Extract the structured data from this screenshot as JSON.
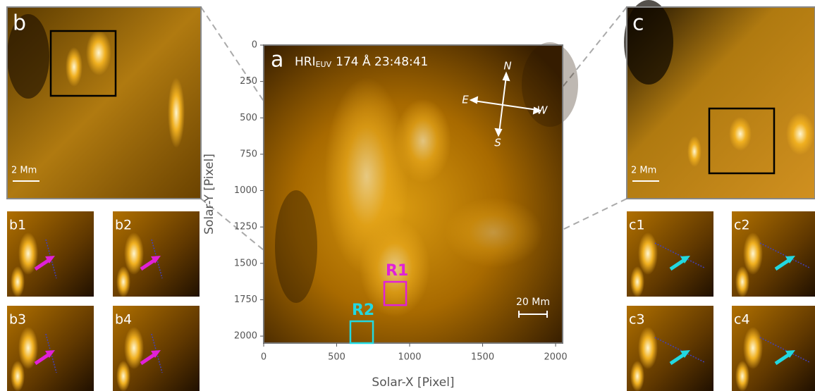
{
  "chart_data": {
    "type": "image",
    "panel_label": "a",
    "instrument": "HRI",
    "instrument_sub": "EUV",
    "caption": "174 Å 23:48:41",
    "x_label": "Solar-X [Pixel]",
    "y_label": "Solar-Y [Pixel]",
    "xlim": [
      0,
      2048
    ],
    "ylim": [
      2048,
      0
    ],
    "xticks": [
      0,
      500,
      1000,
      1500,
      2000
    ],
    "yticks": [
      0,
      250,
      500,
      750,
      1000,
      1250,
      1500,
      1750,
      2000
    ],
    "compass": [
      "N",
      "E",
      "W",
      "S"
    ],
    "scale_label": "20 Mm",
    "regions": [
      {
        "name": "R1",
        "color": "#e020d8",
        "x": [
          826,
          976
        ],
        "y": [
          1627,
          1787
        ]
      },
      {
        "name": "R2",
        "color": "#22d8e0",
        "x": [
          594,
          749
        ],
        "y": [
          1898,
          2048
        ]
      }
    ],
    "insets": [
      {
        "label": "b",
        "scale_label": "2 Mm",
        "arrow_color": "#e020d8"
      },
      {
        "label": "c",
        "scale_label": "2 Mm",
        "arrow_color": "#22d8e0"
      }
    ],
    "subpanels": [
      [
        "b1",
        "b2",
        "b3",
        "b4"
      ],
      [
        "c1",
        "c2",
        "c3",
        "c4"
      ]
    ]
  }
}
